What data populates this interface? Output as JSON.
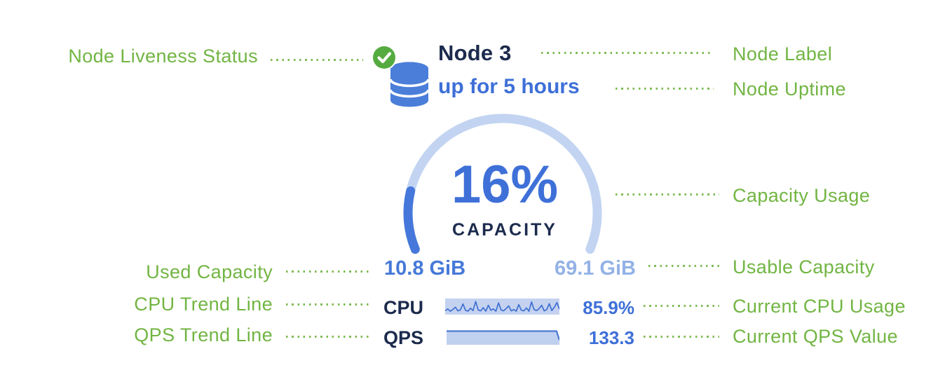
{
  "node": {
    "name": "Node 3",
    "uptime": "up for 5 hours",
    "status_icon": "green-checkmark",
    "node_icon": "database-cylinder"
  },
  "gauge": {
    "percent": 16,
    "percent_label": "16%",
    "caption": "CAPACITY",
    "used_capacity": "10.8 GiB",
    "usable_capacity": "69.1 GiB"
  },
  "stats": {
    "cpu": {
      "label": "CPU",
      "value": "85.9%",
      "trend": [
        0.18,
        0.32,
        0.15,
        0.28,
        0.45,
        0.18,
        0.25,
        0.7,
        0.22,
        0.15,
        0.38,
        0.2,
        0.88,
        0.25,
        0.18,
        0.42,
        0.15,
        0.6,
        0.22,
        0.32,
        0.15,
        0.78,
        0.25,
        0.18,
        0.35,
        0.55,
        0.18,
        0.28,
        0.15,
        0.65,
        0.22,
        0.18,
        0.4,
        0.15,
        0.85,
        0.28,
        0.2,
        0.35,
        0.6,
        0.18,
        0.28,
        0.72,
        0.2,
        0.45,
        0.8,
        0.3
      ]
    },
    "qps": {
      "label": "QPS",
      "value": "133.3",
      "trend": [
        1,
        1,
        1,
        1,
        1,
        1,
        1,
        1,
        1,
        1,
        1,
        1,
        1,
        1,
        1,
        1,
        1,
        1,
        1,
        1,
        1,
        1,
        1,
        1,
        1,
        1,
        1,
        1,
        1,
        1,
        1,
        1,
        1,
        1,
        1,
        1,
        1,
        1,
        1,
        0.3
      ]
    }
  },
  "annotations": {
    "left": [
      {
        "label": "Node Liveness Status"
      },
      {
        "label": "Used Capacity"
      },
      {
        "label": "CPU Trend Line"
      },
      {
        "label": "QPS Trend Line"
      }
    ],
    "right": [
      {
        "label": "Node Label"
      },
      {
        "label": "Node Uptime"
      },
      {
        "label": "Capacity Usage"
      },
      {
        "label": "Usable Capacity"
      },
      {
        "label": "Current CPU Usage"
      },
      {
        "label": "Current QPS Value"
      }
    ]
  },
  "colors": {
    "green": "#72B543",
    "badge_green": "#55AB3F",
    "navy": "#1C2B4D",
    "blue": "#3E70D8",
    "blue_used": "#4679D8",
    "blue_faint": "#93B2E6",
    "track": "#C2D4F1",
    "gauge_fill": "#4678DB",
    "db_blue": "#4A7ED9",
    "spark_bg": "#C4D2F0",
    "spark_line": "#3F6FD2",
    "qps_fill": "#C0D0EF",
    "qps_line": "#4B79D4"
  }
}
